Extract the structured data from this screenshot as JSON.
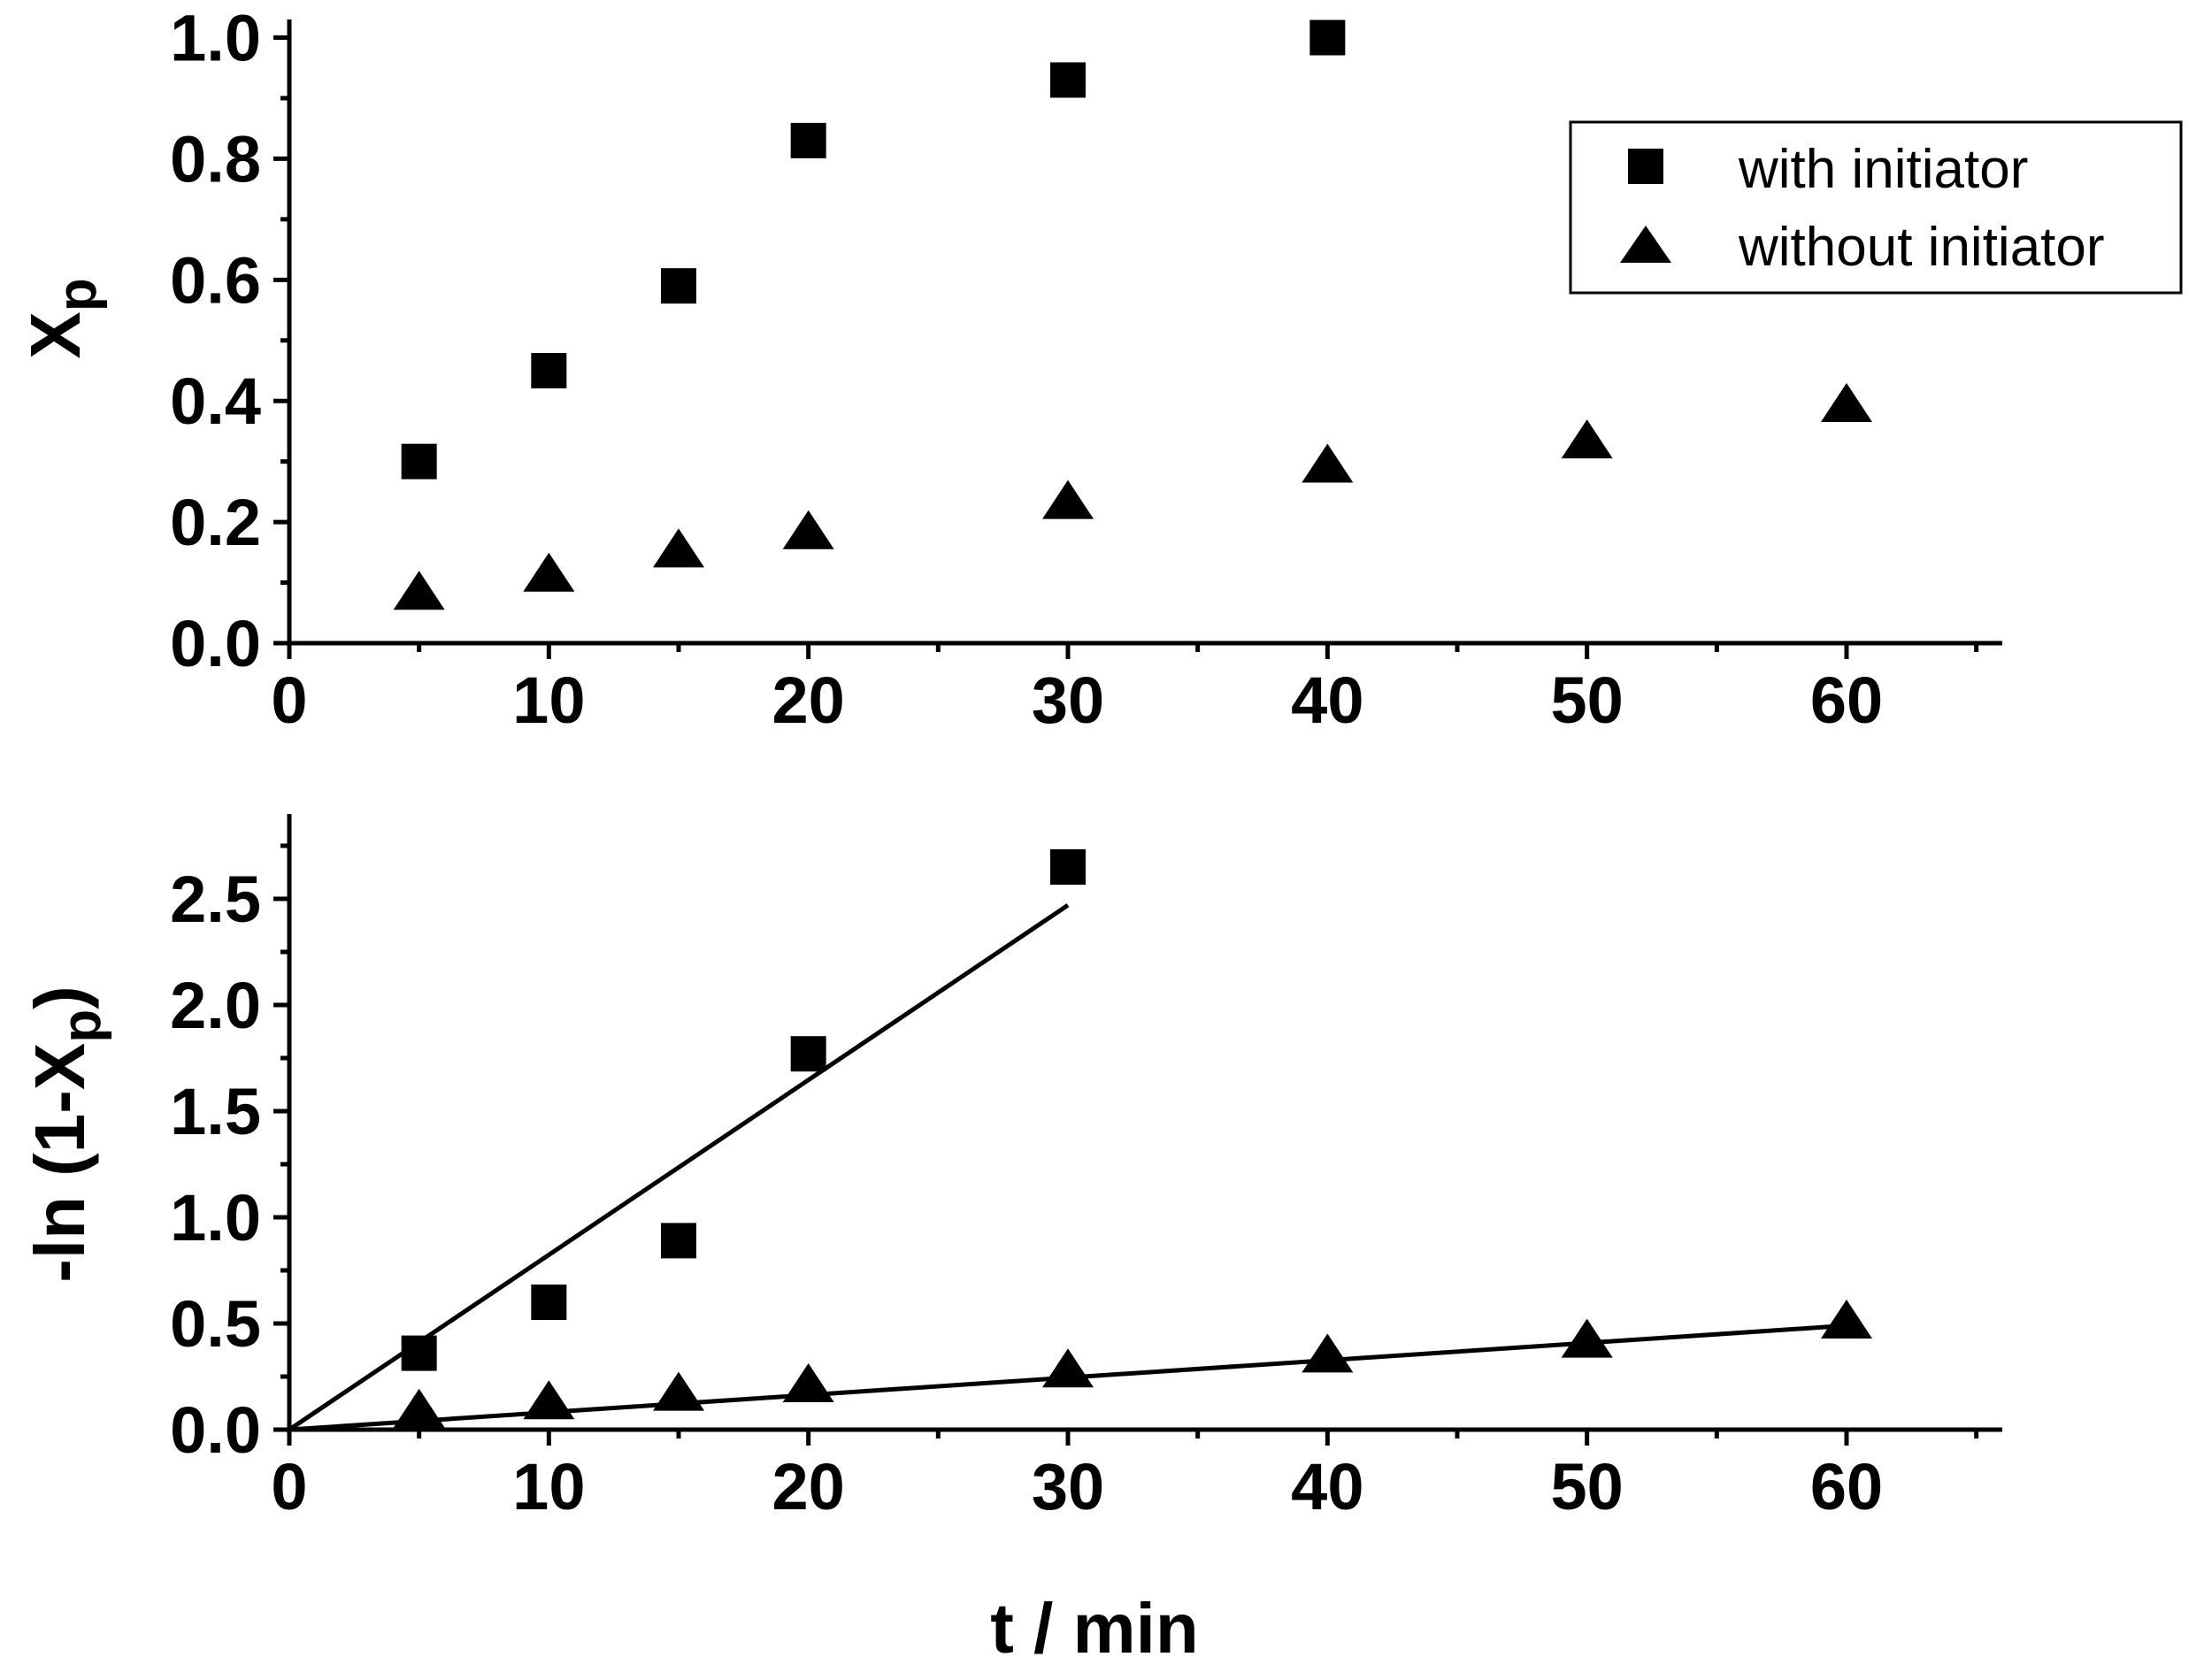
{
  "chart_data": [
    {
      "type": "scatter",
      "title": "",
      "xlabel": "",
      "ylabel": "X",
      "ylabel_subscript": "p",
      "xlim": [
        0,
        66
      ],
      "ylim": [
        0,
        1.03
      ],
      "xticks": [
        0,
        10,
        20,
        30,
        40,
        50,
        60
      ],
      "xtick_labels": [
        "0",
        "10",
        "20",
        "30",
        "40",
        "50",
        "60"
      ],
      "yticks": [
        0,
        0.2,
        0.4,
        0.6,
        0.8,
        1.0
      ],
      "ytick_labels": [
        "0.0",
        "0.2",
        "0.4",
        "0.6",
        "0.8",
        "1.0"
      ],
      "legend_position": "top-right",
      "series": [
        {
          "name": "with initiator",
          "marker": "square",
          "x": [
            5,
            10,
            15,
            20,
            30,
            40
          ],
          "y": [
            0.3,
            0.45,
            0.59,
            0.83,
            0.93,
            1.0
          ]
        },
        {
          "name": "without initiator",
          "marker": "triangle",
          "x": [
            5,
            10,
            15,
            20,
            30,
            40,
            50,
            60
          ],
          "y": [
            0.08,
            0.11,
            0.15,
            0.18,
            0.23,
            0.29,
            0.33,
            0.39
          ]
        }
      ]
    },
    {
      "type": "scatter",
      "title": "",
      "xlabel": "t / min",
      "ylabel": "-ln (1-X",
      "ylabel_subscript": "p",
      "ylabel_suffix": ")",
      "xlim": [
        0,
        66
      ],
      "ylim": [
        0,
        2.9
      ],
      "xticks": [
        0,
        10,
        20,
        30,
        40,
        50,
        60
      ],
      "xtick_labels": [
        "0",
        "10",
        "20",
        "30",
        "40",
        "50",
        "60"
      ],
      "yticks": [
        0,
        0.5,
        1.0,
        1.5,
        2.0,
        2.5
      ],
      "ytick_labels": [
        "0.0",
        "0.5",
        "1.0",
        "1.5",
        "2.0",
        "2.5"
      ],
      "series": [
        {
          "name": "with initiator",
          "marker": "square",
          "x": [
            5,
            10,
            15,
            20,
            30
          ],
          "y": [
            0.36,
            0.6,
            0.89,
            1.77,
            2.65
          ],
          "fit": {
            "x": [
              0,
              30
            ],
            "y": [
              0.0,
              2.47
            ]
          }
        },
        {
          "name": "without initiator",
          "marker": "triangle",
          "x": [
            5,
            10,
            15,
            20,
            30,
            40,
            50,
            60
          ],
          "y": [
            0.08,
            0.12,
            0.16,
            0.2,
            0.27,
            0.34,
            0.41,
            0.5
          ],
          "fit": {
            "x": [
              0,
              60
            ],
            "y": [
              0.0,
              0.49
            ]
          }
        }
      ]
    }
  ],
  "legend": {
    "items": [
      {
        "label": "with initiator",
        "marker": "square"
      },
      {
        "label": "without initiator",
        "marker": "triangle"
      }
    ]
  }
}
